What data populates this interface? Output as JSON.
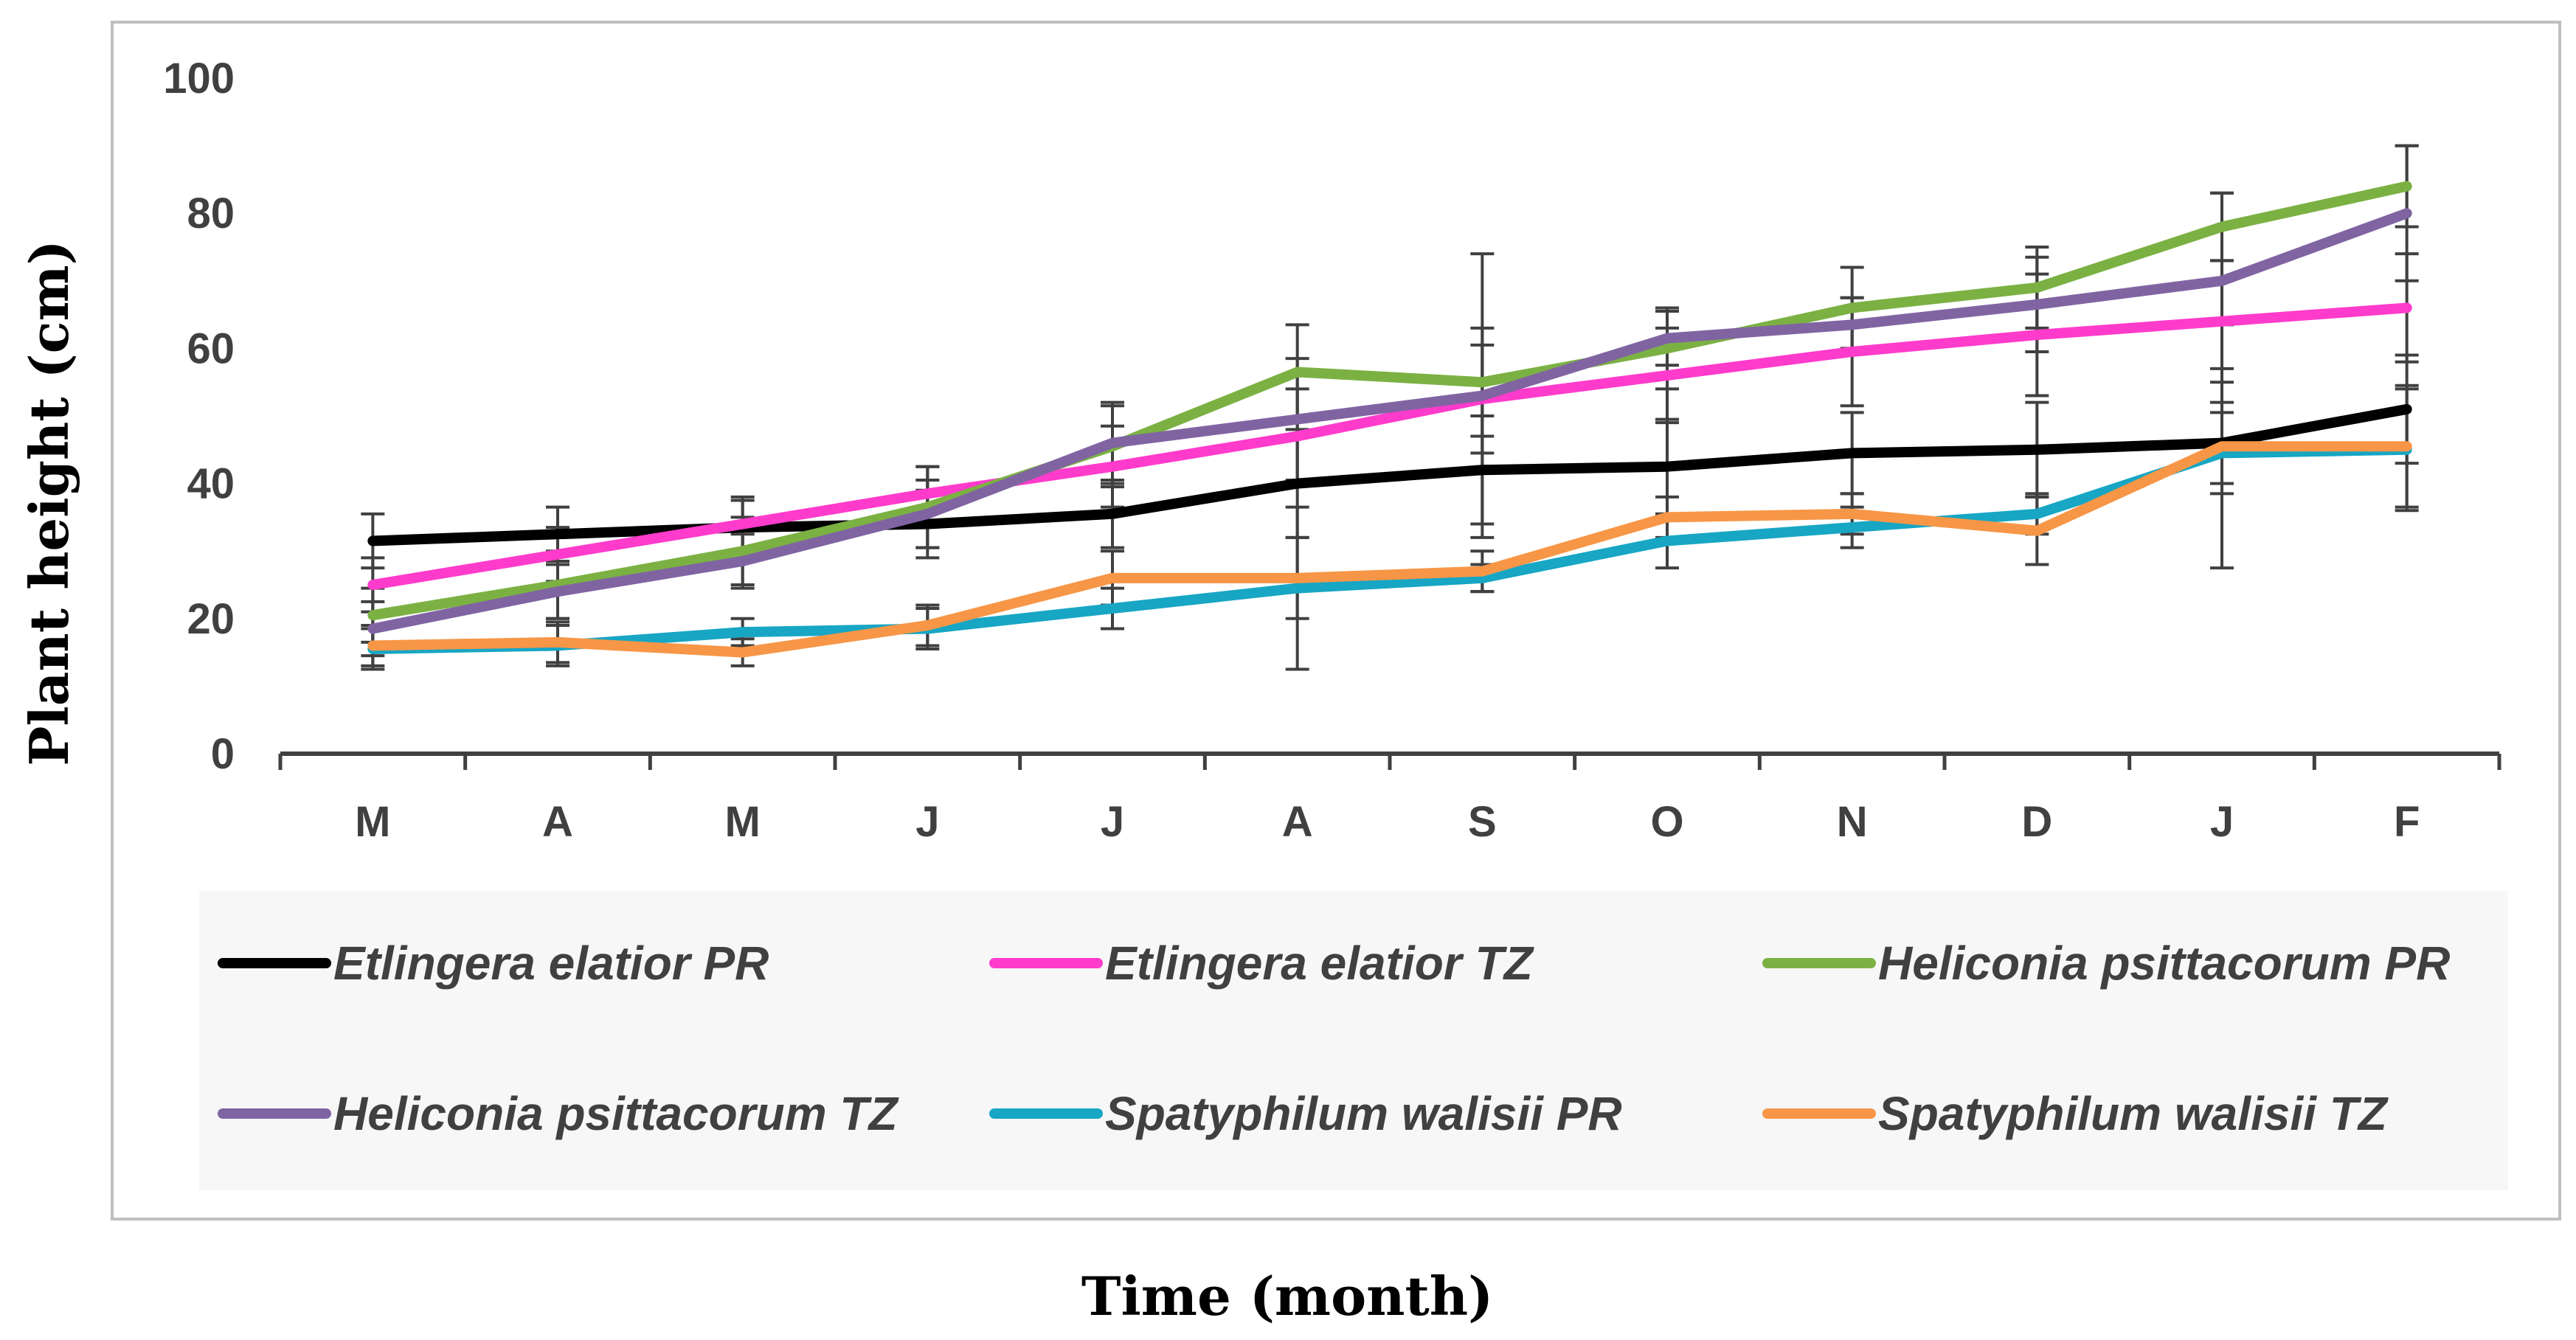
{
  "chart_data": {
    "type": "line",
    "title": "",
    "xlabel": "Time (month)",
    "ylabel": "Plant height (cm)",
    "ylim": [
      0,
      100
    ],
    "yticks": [
      0,
      20,
      40,
      60,
      80,
      100
    ],
    "categories": [
      "M",
      "A",
      "M",
      "J",
      "J",
      "A",
      "S",
      "O",
      "N",
      "D",
      "J",
      "F"
    ],
    "legend_position": "bottom",
    "series": [
      {
        "name": "Etlingera elatior PR",
        "color": "#000000",
        "values": [
          31.5,
          32.5,
          33.5,
          34,
          35.5,
          40,
          42,
          42.5,
          44.5,
          45,
          46,
          51
        ],
        "errors": [
          4,
          4,
          4,
          5,
          5,
          8,
          8,
          7,
          6,
          7,
          6,
          8
        ]
      },
      {
        "name": "Etlingera elatior TZ",
        "color": "#ff3bcc",
        "values": [
          25,
          29.5,
          34,
          38.5,
          42.5,
          47,
          52.5,
          56,
          59.5,
          62,
          64,
          66
        ],
        "errors": [
          4,
          4,
          4,
          4,
          6,
          7,
          8,
          7,
          8,
          9,
          9,
          8
        ]
      },
      {
        "name": "Heliconia psittacorum PR",
        "color": "#7bb143",
        "values": [
          20.5,
          25,
          30,
          36.5,
          45.5,
          56.5,
          55,
          60,
          66,
          69,
          78,
          84
        ],
        "errors": [
          4,
          5,
          5,
          6,
          6,
          7,
          8,
          6,
          6,
          6,
          5,
          6
        ]
      },
      {
        "name": "Heliconia psittacorum TZ",
        "color": "#8064a2",
        "values": [
          18.5,
          24,
          28.5,
          35.5,
          46,
          49.5,
          53,
          61.5,
          63.5,
          66.5,
          70,
          80
        ],
        "errors": [
          4,
          4,
          4,
          5,
          6,
          9,
          21,
          4,
          4,
          7,
          13,
          10
        ]
      },
      {
        "name": "Spatyphilum walisii PR",
        "color": "#17a6c4",
        "values": [
          15.5,
          16,
          18,
          18.5,
          21.5,
          24.5,
          26,
          31.5,
          33.5,
          35.5,
          44.5,
          45
        ],
        "errors": [
          3,
          3,
          2,
          3,
          3,
          12,
          2,
          4,
          3,
          3,
          6,
          9
        ]
      },
      {
        "name": "Spatyphilum walisii TZ",
        "color": "#f79646",
        "values": [
          16,
          16.5,
          15,
          19,
          26,
          26,
          27,
          35,
          35.5,
          33,
          45.5,
          45.5
        ],
        "errors": [
          3,
          3,
          2,
          3,
          4,
          6,
          3,
          3,
          3,
          5,
          18,
          9
        ]
      }
    ]
  }
}
